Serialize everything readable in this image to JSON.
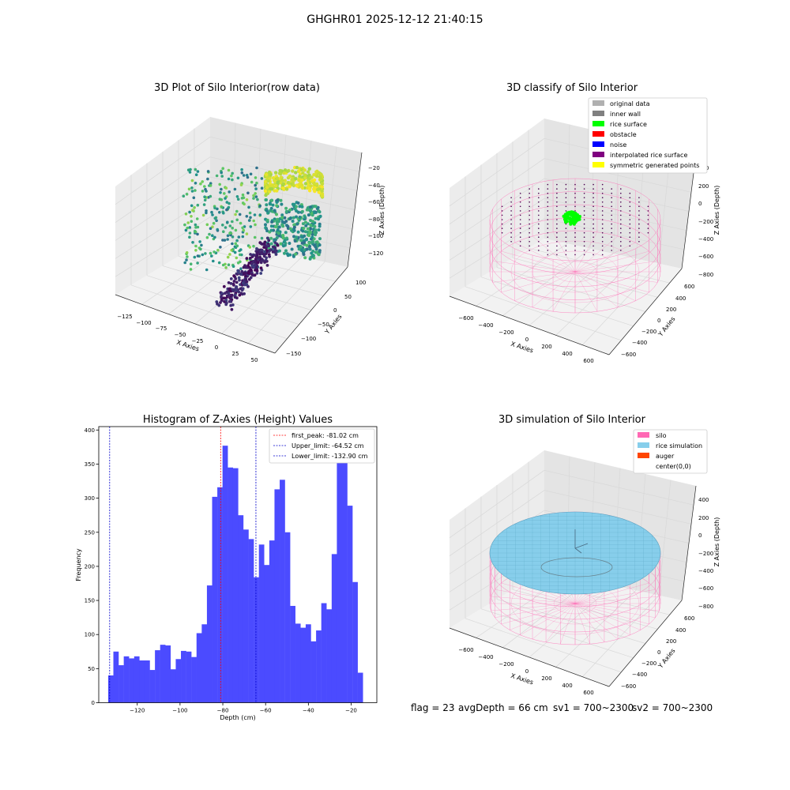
{
  "suptitle": "GHGHR01 2025-12-12 21:40:15",
  "footer": {
    "flag": "flag = 23",
    "avg_depth": "avgDepth = 66 cm",
    "sv1": "sv1 = 700~2300",
    "sv2": "sv2 = 700~2300"
  },
  "colors": {
    "hist_bar": "#4b4bff",
    "peak_line": "#ff0000",
    "limit_line": "#0000cc",
    "silo": "#ff69b4",
    "rice_simulation": "#87ceeb",
    "auger": "#ff4500",
    "rice_surface": "#00ff00"
  },
  "chart_data": [
    {
      "type": "scatter",
      "projection": "3d",
      "title": "3D Plot of Silo Interior(row data)",
      "xlabel": "X Axies",
      "ylabel": "Y Axies",
      "zlabel": "Z Axies (Depth)",
      "x_ticks": [
        "−125",
        "−100",
        "−75",
        "−50",
        "−25",
        "0",
        "25",
        "50"
      ],
      "y_ticks": [
        "100",
        "50",
        "0",
        "−50",
        "−100",
        "−150"
      ],
      "z_ticks": [
        "−20",
        "−40",
        "−60",
        "−80",
        "−100",
        "−120"
      ],
      "colormap": "viridis"
    },
    {
      "type": "scatter",
      "projection": "3d",
      "title": "3D classify of Silo Interior",
      "xlabel": "X Axies",
      "ylabel": "Y Axies",
      "zlabel": "Z Axies (Depth)",
      "x_ticks": [
        "−600",
        "−400",
        "−200",
        "0",
        "200",
        "400",
        "600"
      ],
      "y_ticks": [
        "600",
        "400",
        "200",
        "0",
        "−200",
        "−400",
        "−600"
      ],
      "z_ticks": [
        "400",
        "200",
        "0",
        "−200",
        "−400",
        "−600",
        "−800"
      ],
      "legend_position": "top-right",
      "legend": [
        {
          "label": "original data",
          "color": "#b0b0b0"
        },
        {
          "label": "inner wall",
          "color": "#808080"
        },
        {
          "label": "rice surface",
          "color": "#00ff00"
        },
        {
          "label": "obstacle",
          "color": "#ff0000"
        },
        {
          "label": "noise",
          "color": "#0000ff"
        },
        {
          "label": "interpolated rice surface",
          "color": "#800080"
        },
        {
          "label": "symmetric generated points",
          "color": "#ffff00"
        }
      ]
    },
    {
      "type": "bar",
      "title": "Histogram of Z-Axies (Height) Values",
      "xlabel": "Depth (cm)",
      "ylabel": "Frequency",
      "xlim": [
        -138,
        -8
      ],
      "ylim": [
        0,
        405
      ],
      "x_ticks": [
        -120,
        -100,
        -80,
        -60,
        -40,
        -20
      ],
      "y_ticks": [
        0,
        50,
        100,
        150,
        200,
        250,
        300,
        350,
        400
      ],
      "bin_start": -133.6,
      "bin_width": 2.43,
      "values": [
        40,
        75,
        55,
        68,
        65,
        68,
        62,
        62,
        48,
        77,
        85,
        84,
        49,
        64,
        76,
        75,
        67,
        102,
        115,
        172,
        302,
        316,
        377,
        345,
        344,
        275,
        254,
        240,
        184,
        232,
        202,
        238,
        313,
        327,
        250,
        142,
        116,
        110,
        115,
        90,
        106,
        146,
        137,
        218,
        355,
        362,
        289,
        177,
        44
      ],
      "vlines": [
        {
          "x": -81.02,
          "label": "first_peak: -81.02 cm",
          "color": "#ff0000"
        },
        {
          "x": -64.52,
          "label": "Upper_limit: -64.52 cm",
          "color": "#0000cc"
        },
        {
          "x": -132.9,
          "label": "Lower_limit: -132.90 cm",
          "color": "#0000cc"
        }
      ],
      "legend_position": "top-right"
    },
    {
      "type": "scatter",
      "projection": "3d",
      "title": "3D simulation of Silo Interior",
      "xlabel": "X Axies",
      "ylabel": "Y Axies",
      "zlabel": "Z Axies (Depth)",
      "x_ticks": [
        "−600",
        "−400",
        "−200",
        "0",
        "200",
        "400",
        "600"
      ],
      "y_ticks": [
        "600",
        "400",
        "200",
        "0",
        "−200",
        "−400",
        "−600"
      ],
      "z_ticks": [
        "400",
        "200",
        "0",
        "−200",
        "−400",
        "−600",
        "−800"
      ],
      "legend_position": "top-right",
      "legend": [
        {
          "label": "silo",
          "color": "#ff69b4"
        },
        {
          "label": "rice simulation",
          "color": "#87ceeb"
        },
        {
          "label": "auger",
          "color": "#ff4500"
        },
        {
          "label": "center(0,0)",
          "color": ""
        }
      ]
    }
  ]
}
